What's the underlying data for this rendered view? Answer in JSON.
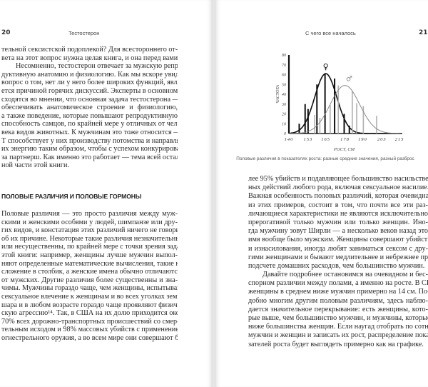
{
  "left_page": {
    "folio": "20",
    "running_head": "Тестостерон",
    "section_heading": "ПОЛОВЫЕ РАЗЛИЧИЯ И ПОЛОВЫЕ ГОРМОНЫ",
    "block1": [
      {
        "t": "тельной сексистской подоплекой? Для всестороннего от-"
      },
      {
        "t": "вета на этот вопрос нужна целая книга, и она перед вами.",
        "last": true
      },
      {
        "t": "Несомненно, тестостерон отвечает за мужскую репро-",
        "ind": true
      },
      {
        "t": "дуктивную анатомию и физиологию. Как мы вскоре увидим,"
      },
      {
        "t": "вопрос о том, нет ли у него более широких функций, явля-"
      },
      {
        "t": "ется причиной горячих дискуссий. Эксперты в основном"
      },
      {
        "t": "сходятся во мнении, что основная задача тестостерона —"
      },
      {
        "t": "обеспечивать анатомическое строение и физиологию,"
      },
      {
        "t": "а также поведение, которые повышают репродуктивную"
      },
      {
        "t": "способность самцов, по крайней мере у отличных от чело-"
      },
      {
        "t": "века видов животных. К мужчинам это тоже относится —"
      },
      {
        "t": "Т способствует у них производству потомства и направляет"
      },
      {
        "t": "их энергию таким образом, чтобы с успехом конкурировать"
      },
      {
        "t": "за партнерш. Как именно это работает — тема всей осталь-"
      },
      {
        "t": "ной части этой книги.",
        "last": true
      }
    ],
    "block2": [
      {
        "t": "Половые различия — это просто различия между муж-"
      },
      {
        "t": "скими и женскими особями у людей, шимпанзе или дру-"
      },
      {
        "t": "гих видов, и констатация этих различий ничего не говорит"
      },
      {
        "t": "об их причине. Некоторые такие различия незначительны"
      },
      {
        "t": "или несущественны, по крайней мере с точки зрения задач"
      },
      {
        "t": "этой книги: например, женщины лучше мужчин выпол-"
      },
      {
        "t": "няют определенные математические вычисления, такие как"
      },
      {
        "t": "сложение в столбик, а женские имена обычно отличаются"
      },
      {
        "t": "от мужских. Другие различия более существенны и зна-"
      },
      {
        "t": "чимы. Мужчины гораздо чаще, чем женщины, испытывают"
      },
      {
        "t": "сексуальное влечение к женщинам и во всех уголках земного"
      },
      {
        "t": "шара и в любом возрасте гораздо чаще проявляют физиче-"
      },
      {
        "t": "скую агрессию¹⁴. Так, в США на их долю приходится около"
      },
      {
        "t": "70% всех дорожно-транспортных происшествий со смер-"
      },
      {
        "t": "тельным исходом и 98% массовых убийств с применением"
      },
      {
        "t": "огнестрельного оружия, а во всем мире они совершают бо-"
      }
    ]
  },
  "right_page": {
    "folio": "21",
    "running_head": "С чего все началось",
    "figure_caption": "Половые различия в показателях роста: разные средние значения, разный разброс",
    "block": [
      {
        "t": "лее 95% убийств и подавляющее большинство насильствен-"
      },
      {
        "t": "ных действий любого рода, включая сексуальное насилие."
      },
      {
        "t": "Важная особенность половых различий, которая очевидна"
      },
      {
        "t": "из этих примеров, состоит в том, что почти все эти раз-"
      },
      {
        "t": "личающиеся характеристики не являются исключительно"
      },
      {
        "t": "прерогативой только мужчин или только женщин. Ино-"
      },
      {
        "t": "гда мужчину зовут Ширли — а несколько веков назад это"
      },
      {
        "t": "имя вообще было мужским. Женщины совершают убийства"
      },
      {
        "t": "и изнасилования, иногда любят заниматься сексом с дру-"
      },
      {
        "t": "гими женщинами и бывают медлительнее и небрежнее при"
      },
      {
        "t": "подсчете домашних расходов, чем большинство мужчин.",
        "last": true
      },
      {
        "t": "Давайте подробнее остановимся на очевидном и бес-",
        "ind": true
      },
      {
        "t": "спорном различии между полами, а именно на росте. В США"
      },
      {
        "t": "женщины в среднем ниже мужчин примерно на 14 см. По-"
      },
      {
        "t": "добно многим другим половым различиям, здесь наблю-"
      },
      {
        "t": "дается значительное перекрывание: есть женщины, кото-"
      },
      {
        "t": "рые выше, чем большинство мужчин, и мужчины, которые"
      },
      {
        "t": "ниже большинства женщин. Если наугад отобрать по сотне"
      },
      {
        "t": "мужчин и женщин и записать их рост, распределение пока-"
      },
      {
        "t": "зателей роста будет выглядеть примерно как на графике.",
        "last": true
      }
    ]
  },
  "chart_data": {
    "type": "bar+line",
    "title": "",
    "xlabel": "РОСТ, СМ",
    "ylabel": "ЧАСТОТА",
    "xticks": [
      "140",
      "153",
      "165",
      "178",
      "190",
      "203",
      "215"
    ],
    "yticks": [
      "0",
      "10",
      "20",
      "30",
      "40",
      "50",
      "60",
      "70",
      "80"
    ],
    "xlim": [
      140,
      215
    ],
    "ylim": [
      0,
      80
    ],
    "grid": false,
    "series": [
      {
        "name": "♀",
        "color": "#111111",
        "bars": [
          [
            147,
            10
          ],
          [
            151,
            30
          ],
          [
            153,
            25
          ],
          [
            159,
            50
          ],
          [
            164.5,
            61
          ],
          [
            171,
            56
          ],
          [
            177.5,
            20
          ],
          [
            181,
            8
          ]
        ],
        "curve": {
          "mean": 165,
          "peak": 61,
          "sd": 7.5
        }
      },
      {
        "name": "♂",
        "color": "#8a8a8a",
        "bars": [
          [
            157.5,
            19
          ],
          [
            161,
            16
          ],
          [
            168,
            29
          ],
          [
            173.5,
            49
          ],
          [
            183,
            43
          ],
          [
            186,
            31
          ],
          [
            190.5,
            28
          ],
          [
            199.5,
            18
          ]
        ],
        "curve": {
          "mean": 178,
          "peak": 49,
          "sd": 10
        }
      }
    ]
  }
}
